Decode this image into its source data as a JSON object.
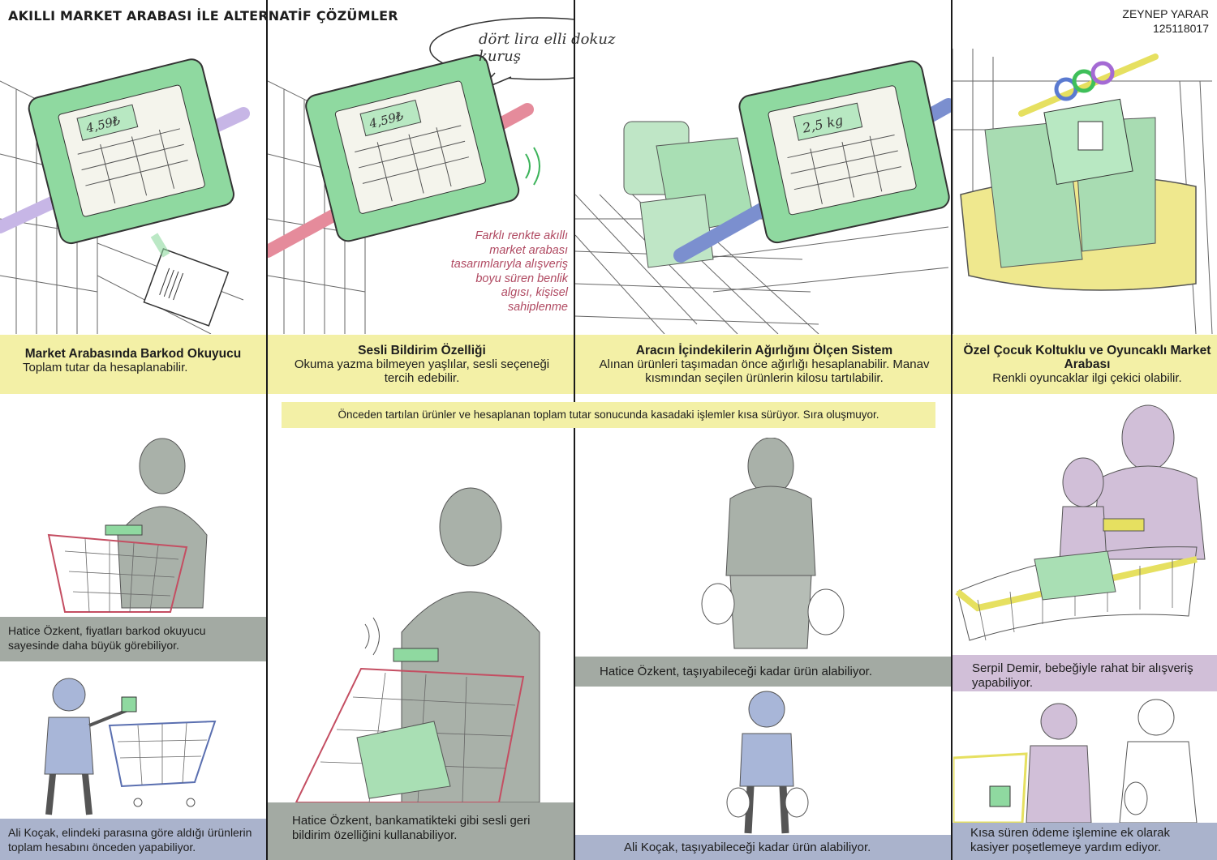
{
  "title": "AKILLI MARKET ARABASI İLE ALTERNATİF ÇÖZÜMLER",
  "author": {
    "name": "ZEYNEP YARAR",
    "id": "125118017"
  },
  "panels": [
    {
      "heading": "Market Arabasında Barkod Okuyucu",
      "text": "Toplam tutar da hesaplanabilir.",
      "screen": "4,59₺"
    },
    {
      "heading": "Sesli Bildirim Özelliği",
      "text": "Okuma yazma bilmeyen yaşlılar, sesli seçeneği tercih edebilir.",
      "screen": "4,59₺",
      "speech": "dört lira elli dokuz kuruş",
      "side_note": "Farklı renkte akıllı market arabası tasarımlarıyla alışveriş boyu süren benlik algısı, kişisel sahiplenme"
    },
    {
      "heading": "Aracın İçindekilerin Ağırlığını Ölçen Sistem",
      "text": "Alınan ürünleri taşımadan önce ağırlığı hesaplanabilir. Manav kısmından seçilen ürünlerin kilosu tartılabilir.",
      "screen": "2,5 kg"
    },
    {
      "heading": "Özel Çocuk Koltuklu ve Oyuncaklı Market Arabası",
      "text": "Renkli oyuncaklar ilgi çekici olabilir."
    }
  ],
  "middle_banner": "Önceden tartılan ürünler ve hesaplanan toplam tutar sonucunda kasadaki işlemler kısa sürüyor. Sıra oluşmuyor.",
  "notes": {
    "n1": "Hatice Özkent, fiyatları barkod okuyucu sayesinde daha büyük görebiliyor.",
    "n2": "Ali Koçak, elindeki parasına göre aldığı ürünlerin toplam hesabını önceden yapabiliyor.",
    "n3": "Hatice Özkent, bankamatikteki gibi sesli geri bildirim özelliğini kullanabiliyor.",
    "n4": "Hatice Özkent, taşıyabileceği kadar ürün alabiliyor.",
    "n5": "Ali Koçak, taşıyabileceği kadar ürün alabiliyor.",
    "n6": "Serpil Demir, bebeğiyle rahat bir alışveriş yapabiliyor.",
    "n7": "Kısa süren ödeme işlemine ek olarak kasiyer poşetlemeye yardım ediyor."
  },
  "colors": {
    "yellow_band": "#f3f0a6",
    "green_device": "#8fd9a0",
    "grey_note": "#a3aaa3",
    "blue_note": "#aab3cc",
    "purple_note": "#d1bfd8",
    "pink_note": "#b04a62"
  }
}
